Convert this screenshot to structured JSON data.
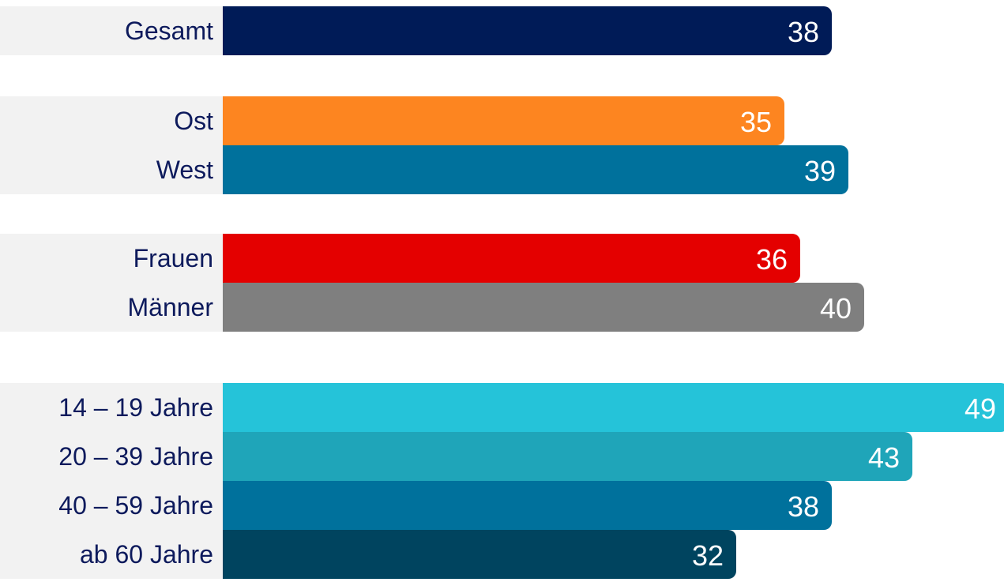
{
  "chart_data": {
    "type": "bar",
    "orientation": "horizontal",
    "categories": [
      "Gesamt",
      "Ost",
      "West",
      "Frauen",
      "Männer",
      "14 – 19 Jahre",
      "20 – 39 Jahre",
      "40 – 59 Jahre",
      "ab 60 Jahre"
    ],
    "values": [
      38,
      35,
      39,
      36,
      40,
      49,
      43,
      38,
      32
    ],
    "groups": [
      [
        "Gesamt"
      ],
      [
        "Ost",
        "West"
      ],
      [
        "Frauen",
        "Männer"
      ],
      [
        "14 – 19 Jahre",
        "20 – 39 Jahre",
        "40 – 59 Jahre",
        "ab 60 Jahre"
      ]
    ],
    "colors": [
      "#001b57",
      "#fd8520",
      "#00719c",
      "#e40000",
      "#7f7f7f",
      "#25c3d9",
      "#1fa5b9",
      "#00719c",
      "#00445f"
    ],
    "data_labels": [
      "38",
      "35",
      "39",
      "36",
      "40",
      "49",
      "43",
      "38",
      "32"
    ],
    "xlim": [
      0,
      49
    ],
    "title": "",
    "xlabel": "",
    "ylabel": "",
    "grid": false,
    "legend": "none"
  }
}
